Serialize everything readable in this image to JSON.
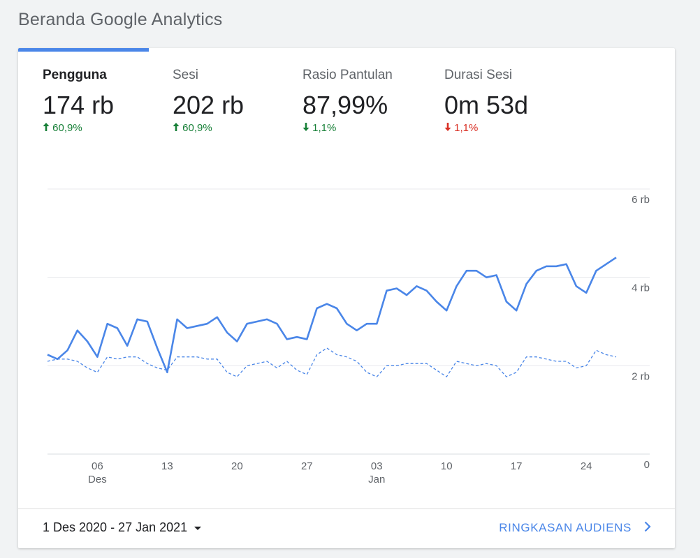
{
  "page": {
    "title": "Beranda Google Analytics"
  },
  "metrics": [
    {
      "label": "Pengguna",
      "value": "174 rb",
      "change": "60,9%",
      "direction": "up",
      "status": "good"
    },
    {
      "label": "Sesi",
      "value": "202 rb",
      "change": "60,9%",
      "direction": "up",
      "status": "good"
    },
    {
      "label": "Rasio Pantulan",
      "value": "87,99%",
      "change": "1,1%",
      "direction": "down",
      "status": "good"
    },
    {
      "label": "Durasi Sesi",
      "value": "0m 53d",
      "change": "1,1%",
      "direction": "down",
      "status": "bad"
    }
  ],
  "colors": {
    "accent": "#4a86e8",
    "positive": "#188038",
    "negative": "#d93025"
  },
  "icons": {
    "arrow_up": "arrow-up-icon",
    "arrow_down": "arrow-down-icon",
    "caret": "caret-down-icon",
    "chevron": "chevron-right-icon"
  },
  "footer": {
    "date_range": "1 Des 2020 - 27 Jan 2021",
    "link_label": "RINGKASAN AUDIENS"
  },
  "chart_data": {
    "type": "line",
    "x_ticks": [
      {
        "day": 5,
        "label": "06",
        "sub": "Des"
      },
      {
        "day": 12,
        "label": "13",
        "sub": ""
      },
      {
        "day": 19,
        "label": "20",
        "sub": ""
      },
      {
        "day": 26,
        "label": "27",
        "sub": ""
      },
      {
        "day": 33,
        "label": "03",
        "sub": "Jan"
      },
      {
        "day": 40,
        "label": "10",
        "sub": ""
      },
      {
        "day": 47,
        "label": "17",
        "sub": ""
      },
      {
        "day": 54,
        "label": "24",
        "sub": ""
      }
    ],
    "y_ticks": [
      {
        "value": 0,
        "label": "0"
      },
      {
        "value": 2000,
        "label": "2 rb"
      },
      {
        "value": 4000,
        "label": "4 rb"
      },
      {
        "value": 6000,
        "label": "6 rb"
      }
    ],
    "ylim": [
      0,
      6000
    ],
    "grid": true,
    "series": [
      {
        "style": "solid",
        "values": [
          2250,
          2150,
          2350,
          2800,
          2550,
          2200,
          2950,
          2850,
          2450,
          3050,
          3000,
          2400,
          1850,
          3050,
          2850,
          2900,
          2950,
          3100,
          2750,
          2550,
          2950,
          3000,
          3050,
          2950,
          2600,
          2650,
          2600,
          3300,
          3400,
          3300,
          2950,
          2800,
          2950,
          2950,
          3700,
          3750,
          3600,
          3800,
          3700,
          3450,
          3250,
          3800,
          4150,
          4150,
          4000,
          4050,
          3450,
          3250,
          3850,
          4150,
          4250,
          4250,
          4300,
          3800,
          3650,
          4150,
          4300,
          4450
        ]
      },
      {
        "style": "dashed",
        "values": [
          2100,
          2150,
          2150,
          2100,
          1950,
          1850,
          2200,
          2150,
          2200,
          2200,
          2050,
          1950,
          1900,
          2200,
          2200,
          2200,
          2150,
          2150,
          1850,
          1750,
          2000,
          2050,
          2100,
          1950,
          2100,
          1900,
          1800,
          2250,
          2400,
          2250,
          2200,
          2100,
          1850,
          1750,
          2000,
          2000,
          2050,
          2050,
          2050,
          1900,
          1750,
          2100,
          2050,
          2000,
          2050,
          2000,
          1750,
          1850,
          2200,
          2200,
          2150,
          2100,
          2100,
          1950,
          2000,
          2350,
          2250,
          2200
        ]
      }
    ]
  }
}
